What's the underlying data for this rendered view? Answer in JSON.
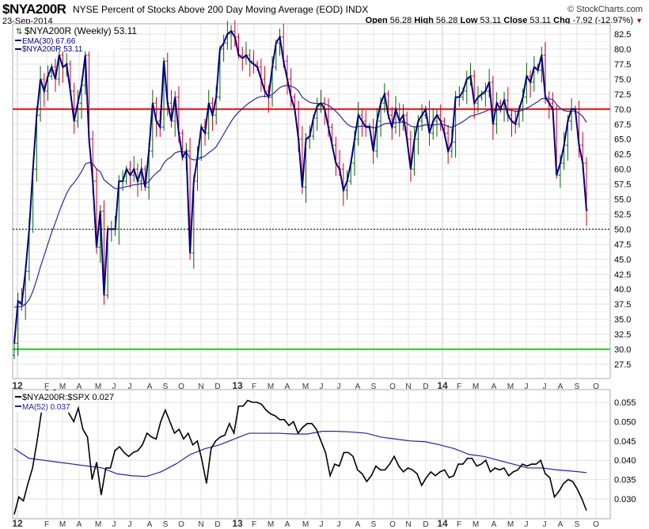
{
  "header": {
    "symbol": "$NYA200R",
    "description": "NYSE Percent of Stocks Above 200 Day Moving Average (EOD) INDX",
    "brand": "© StockCharts.com",
    "date": "23-Sep-2014",
    "open_label": "Open",
    "open": "56.28",
    "high_label": "High",
    "high": "56.28",
    "low_label": "Low",
    "low": "53.11",
    "close_label": "Close",
    "close": "53.11",
    "chg_label": "Chg",
    "chg": "-7.92 (-12.97%)",
    "chg_arrow": "▼"
  },
  "colors": {
    "price": "#000080",
    "up": "#006400",
    "down": "#cc0022",
    "line70": "#ff0000",
    "line30": "#00ee00",
    "ratio": "#000000",
    "ma": "#2222aa"
  },
  "chart_data": [
    {
      "type": "line",
      "title": "$NYA200R (Weekly) 53.11",
      "legend": [
        "$NYA200R (Weekly) 53.11",
        "EMA(30) 67.66",
        "$NYA200R 53.11"
      ],
      "ylim": [
        26,
        84
      ],
      "yticks": [
        "27.5",
        "30.0",
        "32.5",
        "35.0",
        "37.5",
        "40.0",
        "42.5",
        "45.0",
        "47.5",
        "50.0",
        "52.5",
        "55.0",
        "57.5",
        "60.0",
        "62.5",
        "65.0",
        "67.5",
        "70.0",
        "72.5",
        "75.0",
        "77.5",
        "80.0",
        "82.5"
      ],
      "reference_lines": [
        70,
        50,
        30
      ],
      "ema_period": 30,
      "closes": [
        31,
        38,
        37.5,
        43,
        50,
        60,
        69,
        75,
        73,
        75.5,
        77,
        75,
        79,
        77,
        77.5,
        73,
        68,
        71,
        74,
        79,
        65,
        58,
        47,
        53,
        39,
        50,
        50,
        50,
        58,
        58,
        60,
        59,
        60,
        58,
        60,
        57,
        63,
        71,
        68,
        67,
        78,
        71,
        68,
        72,
        66,
        62,
        63,
        46,
        58,
        62,
        67,
        66,
        71,
        69,
        72,
        80,
        81,
        82.5,
        83,
        82,
        79,
        78.5,
        79,
        78,
        77.5,
        77,
        75,
        73,
        72,
        77,
        81,
        82,
        78,
        75,
        72,
        70,
        65,
        57,
        65,
        65.5,
        68.5,
        70.5,
        71,
        70,
        67,
        64,
        61,
        60,
        56.5,
        58,
        61,
        65,
        69,
        68,
        67,
        67,
        63,
        68,
        71,
        72.5,
        69,
        67,
        70,
        68,
        69,
        65,
        60,
        65,
        68,
        69,
        70,
        66,
        68,
        69,
        68,
        66,
        63,
        64.5,
        72,
        72,
        73,
        75,
        75.5,
        71,
        72,
        72.5,
        73,
        74.5,
        67.5,
        71,
        70,
        71.5,
        69,
        68,
        67.5,
        70,
        72,
        75.5,
        74.5,
        77,
        76.5,
        79,
        72,
        71,
        70,
        59,
        61,
        64,
        68,
        70,
        70,
        64,
        61,
        53.11
      ]
    },
    {
      "type": "line",
      "title": "$NYA200R:$SPX 0.027",
      "legend": [
        "$NYA200R:$SPX 0.027",
        "MA(52) 0.037"
      ],
      "ylim": [
        0.0255,
        0.0575
      ],
      "yticks": [
        "0.030",
        "0.035",
        "0.040",
        "0.045",
        "0.050",
        "0.055"
      ],
      "ratio": [
        0.026,
        0.0305,
        0.0295,
        0.034,
        0.038,
        0.045,
        0.053,
        0.058,
        0.059,
        0.058,
        0.057,
        0.055,
        0.052,
        0.05,
        0.0535,
        0.048,
        0.046,
        0.035,
        0.0395,
        0.031,
        0.038,
        0.038,
        0.0425,
        0.0435,
        0.042,
        0.041,
        0.042,
        0.0425,
        0.044,
        0.047,
        0.046,
        0.0455,
        0.05,
        0.053,
        0.05,
        0.047,
        0.048,
        0.0455,
        0.047,
        0.044,
        0.045,
        0.04,
        0.034,
        0.043,
        0.045,
        0.046,
        0.0465,
        0.0495,
        0.047,
        0.054,
        0.054,
        0.0555,
        0.055,
        0.055,
        0.0545,
        0.053,
        0.052,
        0.0515,
        0.0505,
        0.0505,
        0.049,
        0.05,
        0.047,
        0.0485,
        0.0495,
        0.0495,
        0.048,
        0.045,
        0.042,
        0.036,
        0.039,
        0.0385,
        0.042,
        0.042,
        0.041,
        0.0375,
        0.0365,
        0.0345,
        0.036,
        0.0385,
        0.0375,
        0.0375,
        0.039,
        0.041,
        0.0385,
        0.037,
        0.038,
        0.0375,
        0.0365,
        0.0335,
        0.0355,
        0.037,
        0.036,
        0.037,
        0.0375,
        0.0355,
        0.036,
        0.039,
        0.039,
        0.0405,
        0.0405,
        0.0385,
        0.039,
        0.04,
        0.037,
        0.038,
        0.0375,
        0.038,
        0.036,
        0.037,
        0.0375,
        0.039,
        0.0385,
        0.039,
        0.039,
        0.04,
        0.0365,
        0.0355,
        0.0305,
        0.032,
        0.034,
        0.035,
        0.0345,
        0.0325,
        0.03,
        0.027
      ],
      "ma52": [
        0.043,
        0.0405,
        0.04,
        0.0395,
        0.039,
        0.0385,
        0.038,
        0.0365,
        0.036,
        0.0358,
        0.037,
        0.039,
        0.0415,
        0.043,
        0.044,
        0.0455,
        0.047,
        0.047,
        0.047,
        0.0468,
        0.0468,
        0.0475,
        0.0475,
        0.0473,
        0.047,
        0.046,
        0.0455,
        0.045,
        0.0448,
        0.044,
        0.043,
        0.0415,
        0.041,
        0.04,
        0.039,
        0.038,
        0.038,
        0.0375,
        0.0372,
        0.0368
      ]
    }
  ],
  "x_labels": [
    "12",
    "F",
    "M",
    "A",
    "M",
    "J",
    "J",
    "A",
    "S",
    "O",
    "N",
    "D",
    "13",
    "F",
    "M",
    "A",
    "M",
    "J",
    "J",
    "A",
    "S",
    "O",
    "N",
    "D",
    "14",
    "F",
    "M",
    "A",
    "M",
    "J",
    "J",
    "A",
    "S",
    "O"
  ]
}
